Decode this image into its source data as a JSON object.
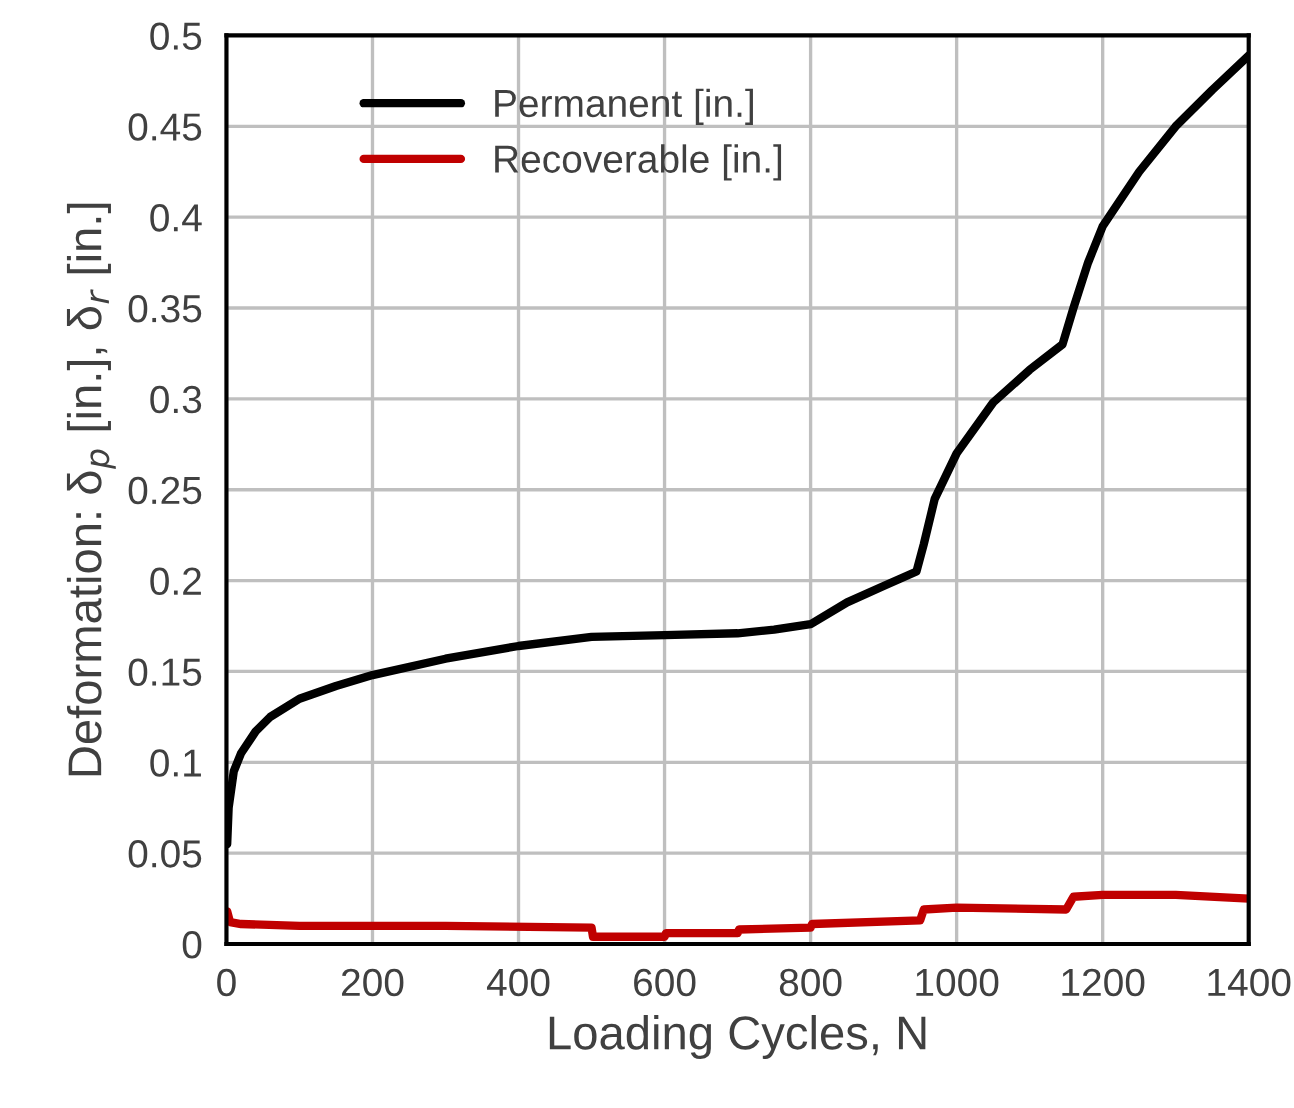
{
  "chart_data": {
    "type": "line",
    "xlabel": "Loading Cycles, N",
    "ylabel": "Deformation: δ$_{p}$ [in.], δ$_{r}$ [in.]",
    "xlim": [
      0,
      1400
    ],
    "xticks": [
      0,
      200,
      400,
      600,
      800,
      1000,
      1200,
      1400
    ],
    "ylim": [
      0,
      0.5
    ],
    "yticks": [
      {
        "value": 0,
        "label": "0"
      },
      {
        "value": 0.05,
        "label": "0.05"
      },
      {
        "value": 0.1,
        "label": "0.1"
      },
      {
        "value": 0.15,
        "label": "0.15"
      },
      {
        "value": 0.2,
        "label": "0.2"
      },
      {
        "value": 0.25,
        "label": "0.25"
      },
      {
        "value": 0.3,
        "label": "0.3"
      },
      {
        "value": 0.35,
        "label": "0.35"
      },
      {
        "value": 0.4,
        "label": "0.4"
      },
      {
        "value": 0.45,
        "label": "0.45"
      },
      {
        "value": 0.5,
        "label": "0.5"
      }
    ],
    "grid": true,
    "legend": "top left",
    "marker": "none",
    "line_style": "solid",
    "series": [
      {
        "name": "Permanent [in.]",
        "color": "#000000",
        "x": [
          1,
          3,
          10,
          20,
          40,
          60,
          100,
          150,
          200,
          300,
          400,
          500,
          600,
          700,
          750,
          800,
          850,
          900,
          945,
          955,
          970,
          1000,
          1050,
          1100,
          1145,
          1160,
          1180,
          1200,
          1250,
          1300,
          1350,
          1400
        ],
        "values": [
          0.055,
          0.075,
          0.095,
          0.105,
          0.117,
          0.125,
          0.135,
          0.142,
          0.148,
          0.157,
          0.164,
          0.169,
          0.17,
          0.171,
          0.173,
          0.176,
          0.188,
          0.197,
          0.205,
          0.22,
          0.245,
          0.27,
          0.298,
          0.316,
          0.33,
          0.35,
          0.375,
          0.395,
          0.425,
          0.45,
          0.47,
          0.489
        ]
      },
      {
        "name": "Recoverable [in.]",
        "color": "#c00000",
        "x": [
          1,
          5,
          20,
          100,
          300,
          500,
          502,
          600,
          602,
          700,
          702,
          800,
          802,
          950,
          955,
          1000,
          1150,
          1160,
          1200,
          1300,
          1400
        ],
        "values": [
          0.018,
          0.012,
          0.011,
          0.01,
          0.01,
          0.009,
          0.004,
          0.004,
          0.006,
          0.006,
          0.008,
          0.009,
          0.011,
          0.013,
          0.019,
          0.02,
          0.019,
          0.026,
          0.027,
          0.027,
          0.025
        ]
      }
    ]
  }
}
